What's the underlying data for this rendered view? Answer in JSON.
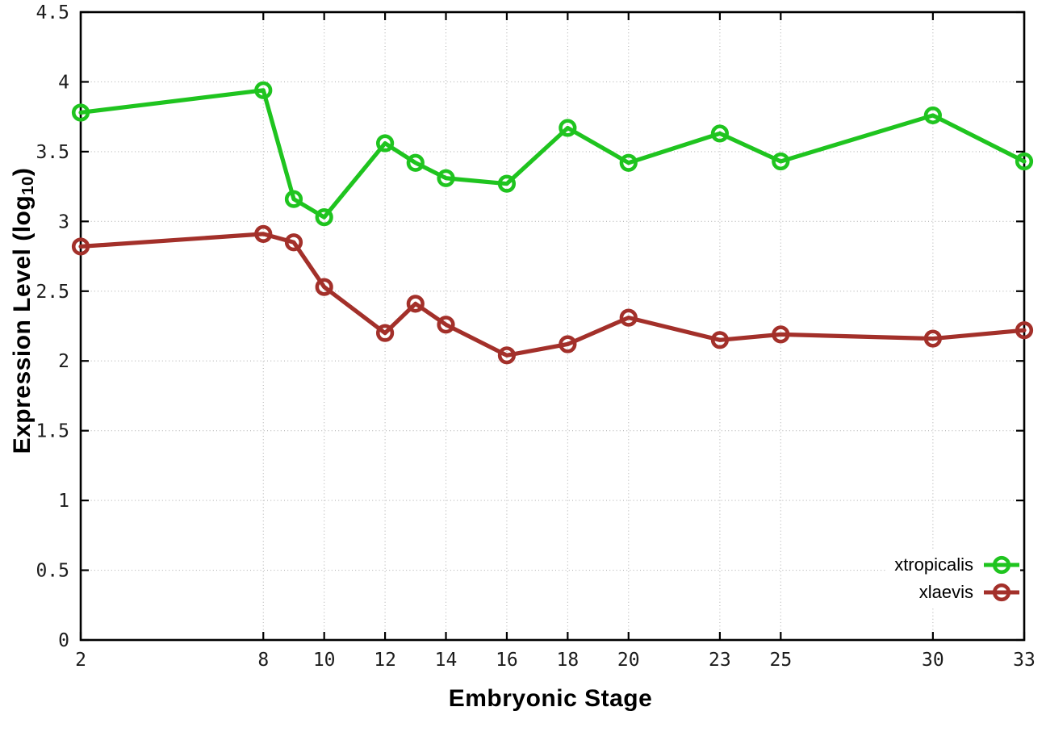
{
  "chart_data": {
    "type": "line",
    "title": "",
    "xlabel": "Embryonic Stage",
    "ylabel": {
      "main": "Expression Level (log",
      "sub": "10",
      "close": ")"
    },
    "x": [
      2,
      8,
      9,
      10,
      12,
      13,
      14,
      16,
      18,
      20,
      23,
      25,
      30,
      33
    ],
    "series": [
      {
        "name": "xtropicalis",
        "color": "#1fc41f",
        "marker": "open-circle",
        "values": [
          3.78,
          3.94,
          3.16,
          3.03,
          3.56,
          3.42,
          3.31,
          3.27,
          3.67,
          3.42,
          3.63,
          3.43,
          3.76,
          3.43
        ]
      },
      {
        "name": "xlaevis",
        "color": "#a3302a",
        "marker": "open-circle",
        "values": [
          2.82,
          2.91,
          2.85,
          2.53,
          2.2,
          2.41,
          2.26,
          2.04,
          2.12,
          2.31,
          2.15,
          2.19,
          2.16,
          2.22
        ]
      }
    ],
    "xticks": [
      2,
      8,
      10,
      12,
      14,
      16,
      18,
      20,
      23,
      25,
      30,
      33
    ],
    "yticks": [
      0,
      0.5,
      1,
      1.5,
      2,
      2.5,
      3,
      3.5,
      4,
      4.5
    ],
    "xlim": [
      2,
      33
    ],
    "ylim": [
      0,
      4.5
    ],
    "grid": true,
    "legend_position": "bottom-right"
  },
  "legend": {
    "items": [
      {
        "label": "xtropicalis"
      },
      {
        "label": "xlaevis"
      }
    ]
  },
  "style": {
    "grid_color": "#b3b3b3",
    "axis_color": "#000000",
    "tick_label_color": "#1c1c1c"
  }
}
